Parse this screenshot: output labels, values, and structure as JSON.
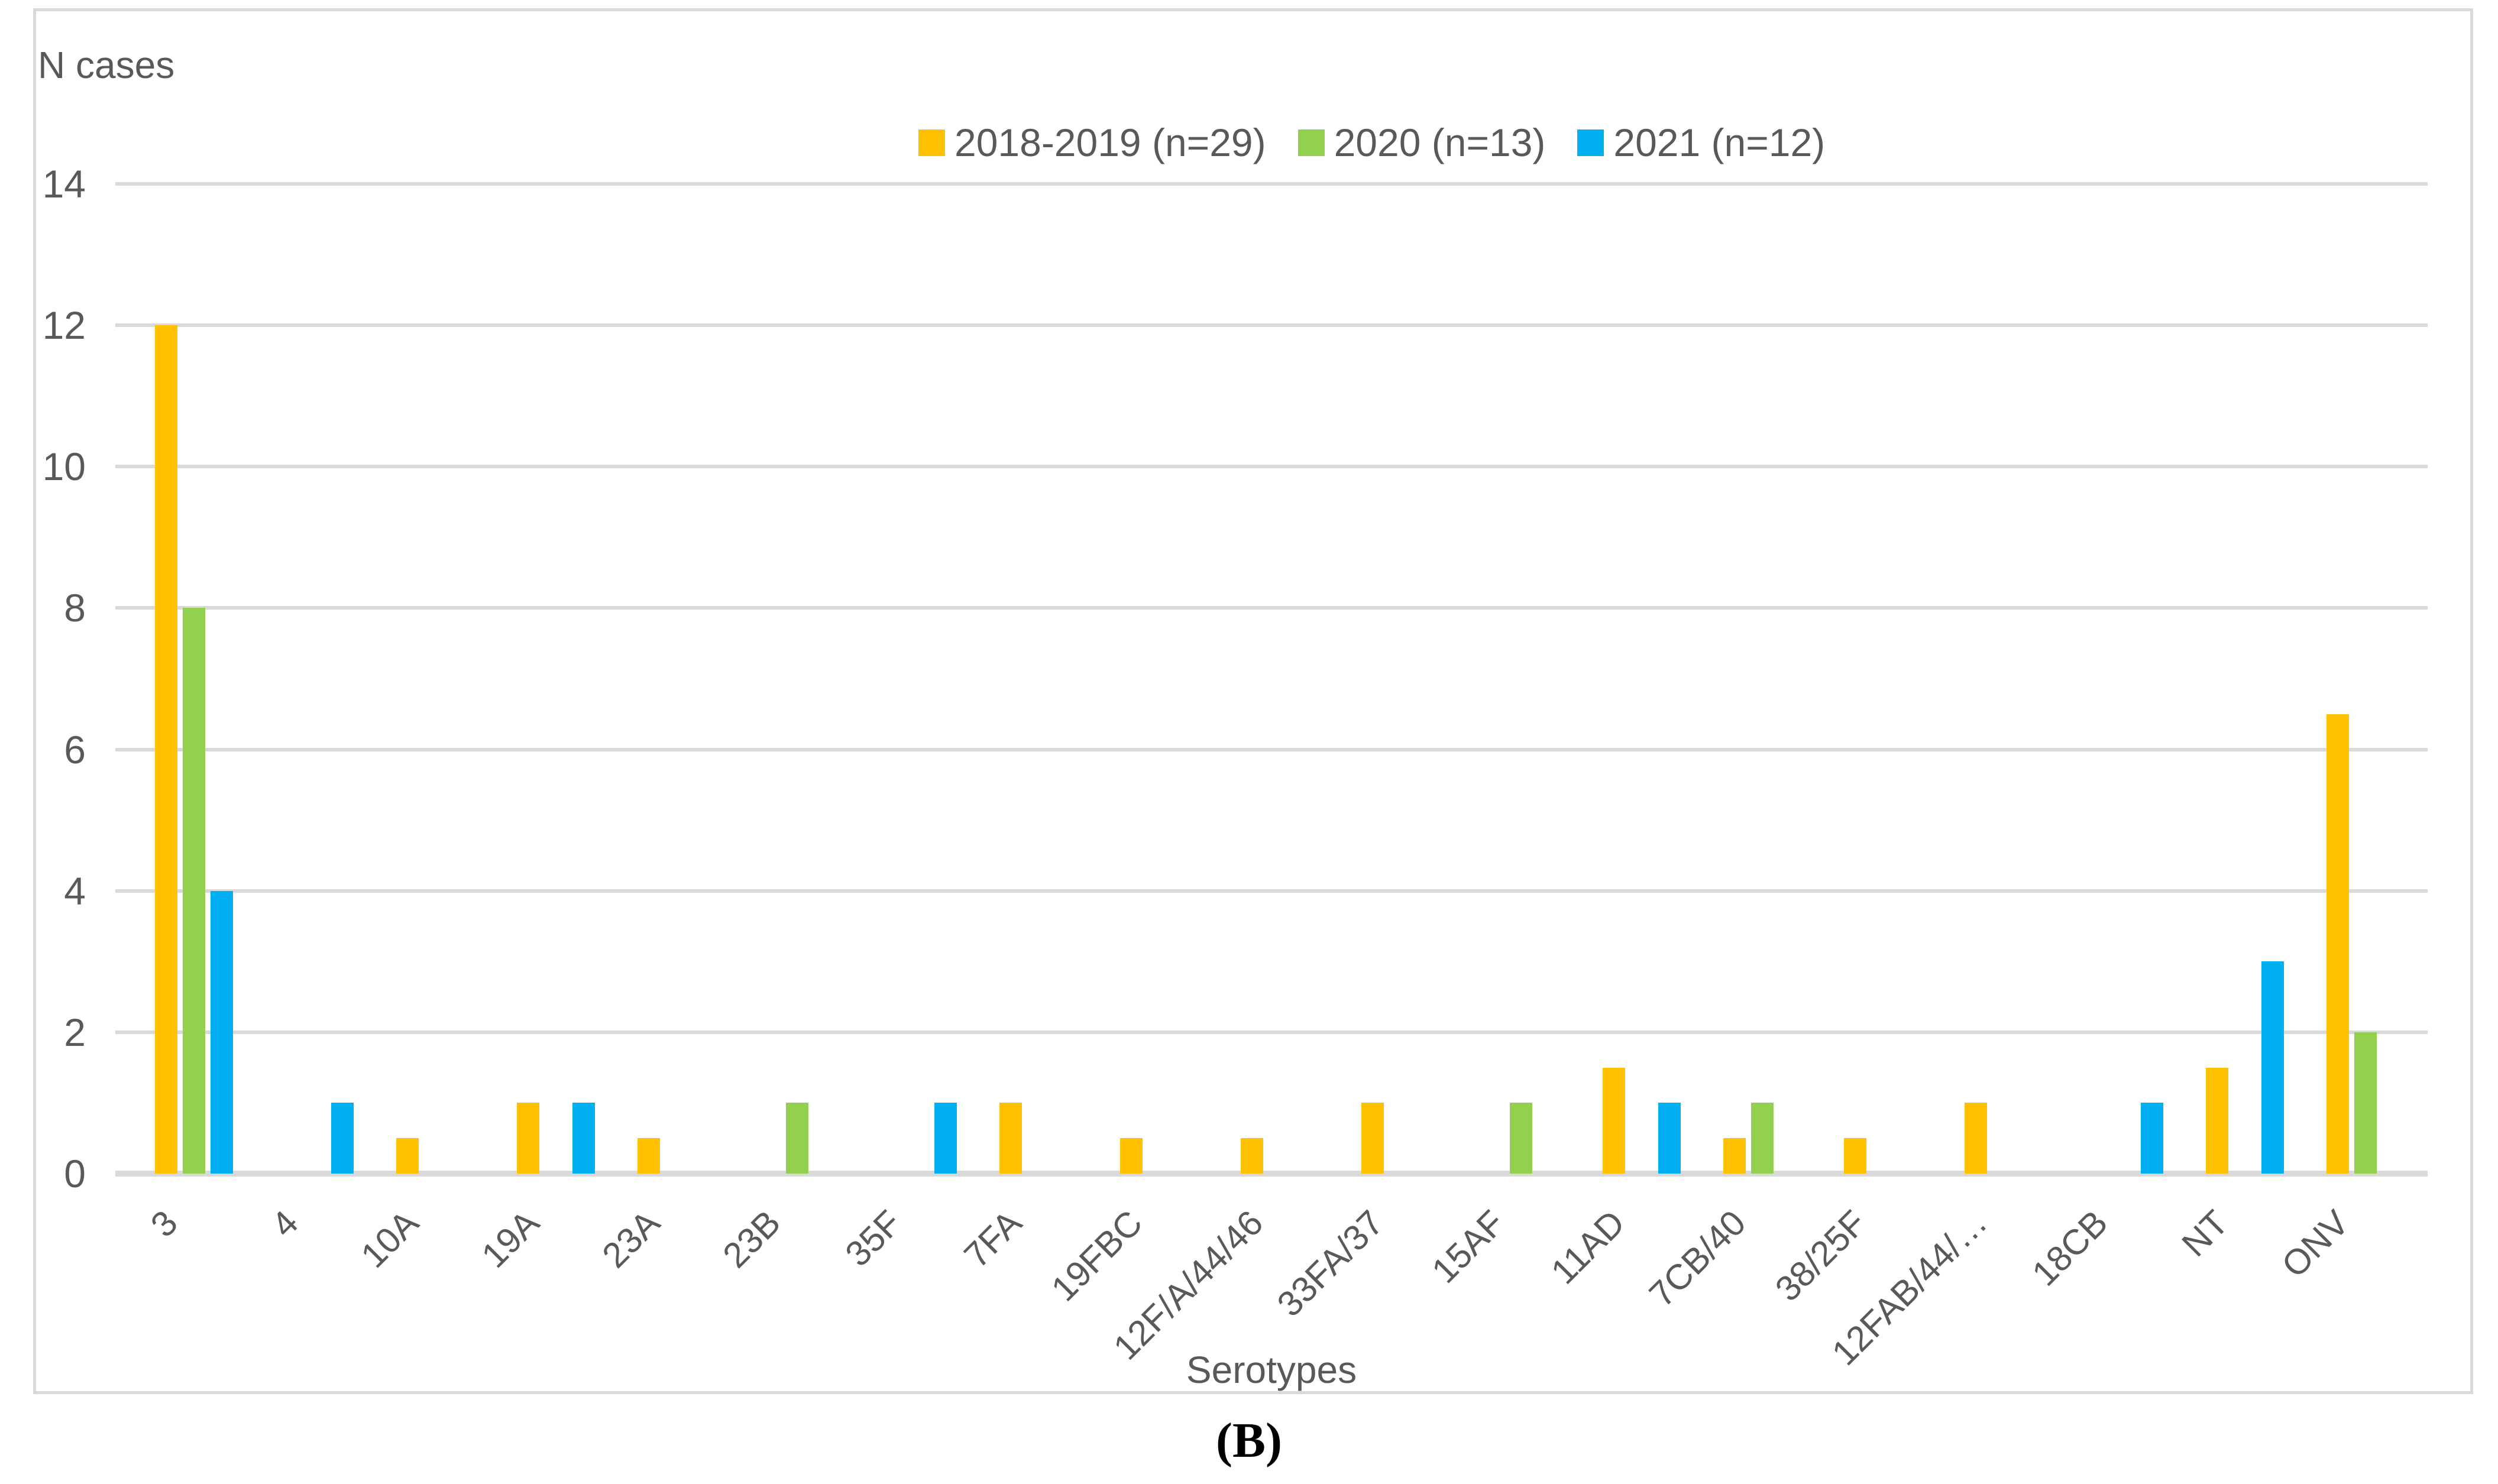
{
  "figure": {
    "y_axis_note": "N cases",
    "x_axis_title": "Serotypes",
    "caption": "(B)"
  },
  "colors": {
    "series_2018_2019": "#FFC000",
    "series_2020": "#92D050",
    "series_2021": "#00B0F0",
    "text": "#595959",
    "gridline": "#D9D9D9",
    "frame": "#D9D9D9"
  },
  "chart_data": {
    "type": "bar",
    "title": "",
    "xlabel": "Serotypes",
    "ylabel": "N cases",
    "ylim": [
      0,
      14
    ],
    "ytick_step": 2,
    "grid": true,
    "legend_position": "top-center",
    "categories": [
      "3",
      "4",
      "10A",
      "19A",
      "23A",
      "23B",
      "35F",
      "7FA",
      "19FBC",
      "12F/A/44/46",
      "33FA/37",
      "15AF",
      "11AD",
      "7CB/40",
      "38/25F",
      "12FAB/44/…",
      "18CB",
      "NT",
      "ONV"
    ],
    "series": [
      {
        "name": "2018-2019 (n=29)",
        "color": "#FFC000",
        "values": [
          12,
          0,
          0.5,
          1,
          0.5,
          0,
          0,
          1,
          0.5,
          0.5,
          1,
          0,
          1.5,
          0.5,
          0.5,
          1,
          0,
          1.5,
          6.5
        ]
      },
      {
        "name": "2020 (n=13)",
        "color": "#92D050",
        "values": [
          8,
          0,
          0,
          0,
          0,
          1,
          0,
          0,
          0,
          0,
          0,
          1,
          0,
          1,
          0,
          0,
          0,
          0,
          2
        ]
      },
      {
        "name": "2021 (n=12)",
        "color": "#00B0F0",
        "values": [
          4,
          1,
          0,
          1,
          0,
          0,
          1,
          0,
          0,
          0,
          0,
          0,
          1,
          0,
          0,
          0,
          1,
          3,
          0
        ]
      }
    ]
  }
}
